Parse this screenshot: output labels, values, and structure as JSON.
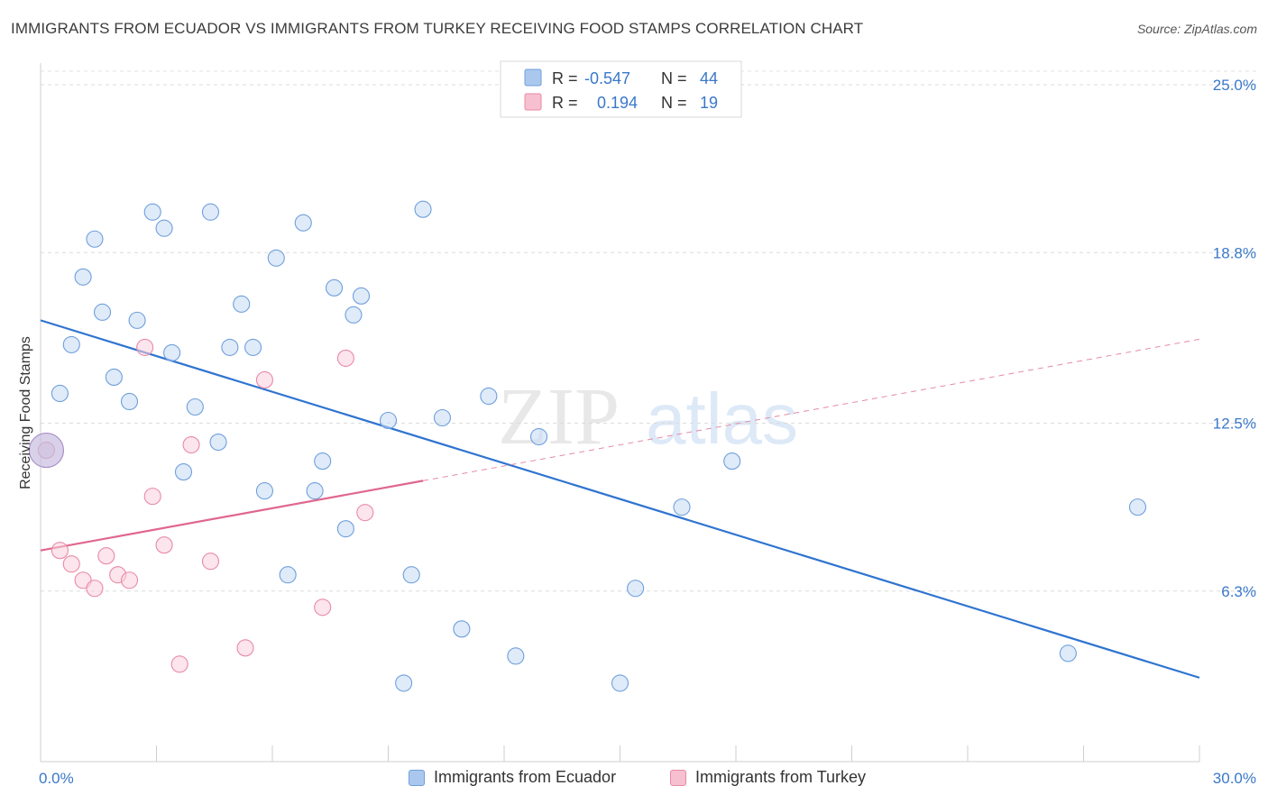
{
  "title": "IMMIGRANTS FROM ECUADOR VS IMMIGRANTS FROM TURKEY RECEIVING FOOD STAMPS CORRELATION CHART",
  "source": "Source: ZipAtlas.com",
  "watermark": {
    "zip": "ZIP",
    "atlas": "atlas"
  },
  "legend": {
    "r_label": "R =",
    "n_label": "N =",
    "rows": [
      {
        "name": "Immigrants from Ecuador",
        "r": "-0.547",
        "n": "44",
        "color": "#aac8ee",
        "stroke": "#6f9fdb"
      },
      {
        "name": "Immigrants from Turkey",
        "r": "0.194",
        "n": "19",
        "color": "#f7c0d0",
        "stroke": "#e88aa6"
      }
    ]
  },
  "chart_data": {
    "type": "scatter",
    "title": "IMMIGRANTS FROM ECUADOR VS IMMIGRANTS FROM TURKEY RECEIVING FOOD STAMPS CORRELATION CHART",
    "xlabel": "",
    "ylabel": "Receiving Food Stamps",
    "xlim": [
      0,
      30
    ],
    "ylim": [
      0,
      25.8
    ],
    "x_tick_labels": [
      "0.0%",
      "30.0%"
    ],
    "y_ticks": [
      6.3,
      12.5,
      18.8,
      25.0
    ],
    "y_tick_labels": [
      "6.3%",
      "12.5%",
      "18.8%",
      "25.0%"
    ],
    "series": [
      {
        "name": "Immigrants from Ecuador",
        "color": "#6f9fdb",
        "fill": "#c5daf4",
        "trend": {
          "x0": 0,
          "y0": 16.3,
          "x1": 30,
          "y1": 3.1,
          "style": "solid"
        },
        "points": [
          [
            0.5,
            13.6
          ],
          [
            0.8,
            15.4
          ],
          [
            1.1,
            17.9
          ],
          [
            1.4,
            19.3
          ],
          [
            1.6,
            16.6
          ],
          [
            1.9,
            14.2
          ],
          [
            2.3,
            13.3
          ],
          [
            2.5,
            16.3
          ],
          [
            2.9,
            20.3
          ],
          [
            3.2,
            19.7
          ],
          [
            3.4,
            15.1
          ],
          [
            3.7,
            10.7
          ],
          [
            4.0,
            13.1
          ],
          [
            4.4,
            20.3
          ],
          [
            4.6,
            11.8
          ],
          [
            4.9,
            15.3
          ],
          [
            5.2,
            16.9
          ],
          [
            5.5,
            15.3
          ],
          [
            5.8,
            10.0
          ],
          [
            6.1,
            18.6
          ],
          [
            6.4,
            6.9
          ],
          [
            6.8,
            19.9
          ],
          [
            7.1,
            10.0
          ],
          [
            7.3,
            11.1
          ],
          [
            7.6,
            17.5
          ],
          [
            7.9,
            8.6
          ],
          [
            8.1,
            16.5
          ],
          [
            8.3,
            17.2
          ],
          [
            9.0,
            12.6
          ],
          [
            9.4,
            2.9
          ],
          [
            9.6,
            6.9
          ],
          [
            9.9,
            20.4
          ],
          [
            10.4,
            12.7
          ],
          [
            10.9,
            4.9
          ],
          [
            11.6,
            13.5
          ],
          [
            12.3,
            3.9
          ],
          [
            12.9,
            12.0
          ],
          [
            15.0,
            2.9
          ],
          [
            15.4,
            6.4
          ],
          [
            16.6,
            9.4
          ],
          [
            17.9,
            11.1
          ],
          [
            26.6,
            4.0
          ],
          [
            28.4,
            9.4
          ],
          [
            0.15,
            11.5
          ]
        ]
      },
      {
        "name": "Immigrants from Turkey",
        "color": "#e88aa6",
        "fill": "#f9d0dc",
        "trend": {
          "x0": 0,
          "y0": 7.8,
          "x1": 30,
          "y1": 15.6,
          "solid_until": 9.9,
          "style": "solid-then-dashed"
        },
        "points": [
          [
            0.5,
            7.8
          ],
          [
            0.8,
            7.3
          ],
          [
            1.1,
            6.7
          ],
          [
            1.4,
            6.4
          ],
          [
            1.7,
            7.6
          ],
          [
            2.0,
            6.9
          ],
          [
            2.3,
            6.7
          ],
          [
            2.7,
            15.3
          ],
          [
            2.9,
            9.8
          ],
          [
            3.2,
            8.0
          ],
          [
            3.6,
            3.6
          ],
          [
            3.9,
            11.7
          ],
          [
            4.4,
            7.4
          ],
          [
            5.3,
            4.2
          ],
          [
            5.8,
            14.1
          ],
          [
            7.3,
            5.7
          ],
          [
            7.9,
            14.9
          ],
          [
            8.4,
            9.2
          ],
          [
            0.15,
            11.5
          ]
        ]
      }
    ]
  }
}
